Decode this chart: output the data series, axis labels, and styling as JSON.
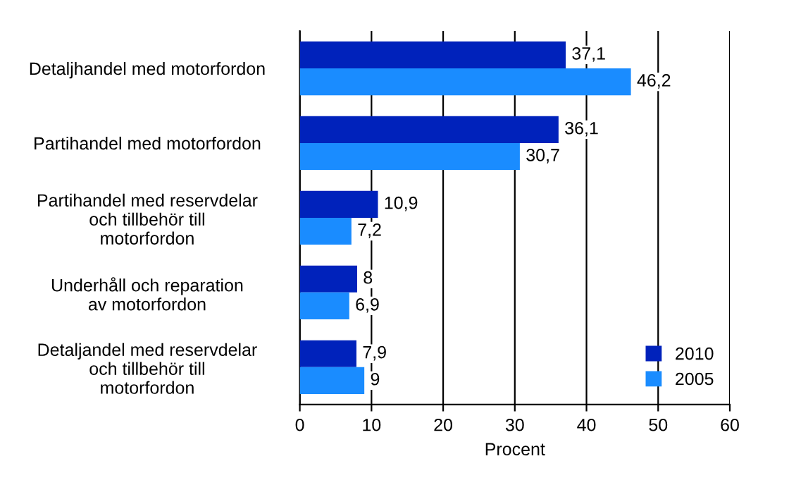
{
  "chart_data": {
    "type": "bar",
    "orientation": "horizontal",
    "xlabel": "Procent",
    "categories": [
      "Detaljhandel med motorfordon",
      "Partihandel med motorfordon",
      "Partihandel med reservdelar\noch tillbehör till\nmotorfordon",
      "Underhåll och reparation\nav motorfordon",
      "Detaljandel med reservdelar\noch tillbehör till\nmotorfordon"
    ],
    "series": [
      {
        "name": "2010",
        "color": "#0022bb",
        "values": [
          37.1,
          36.1,
          10.9,
          8,
          7.9
        ],
        "value_labels": [
          "37,1",
          "36,1",
          "10,9",
          "8",
          "7,9"
        ]
      },
      {
        "name": "2005",
        "color": "#1a8cff",
        "values": [
          46.2,
          30.7,
          7.2,
          6.9,
          9
        ],
        "value_labels": [
          "46,2",
          "30,7",
          "7,2",
          "6,9",
          "9"
        ]
      }
    ],
    "xlim": [
      0,
      60
    ],
    "xticks": [
      0,
      10,
      20,
      30,
      40,
      50,
      60
    ],
    "grid": "x",
    "legend": "bottom right"
  }
}
